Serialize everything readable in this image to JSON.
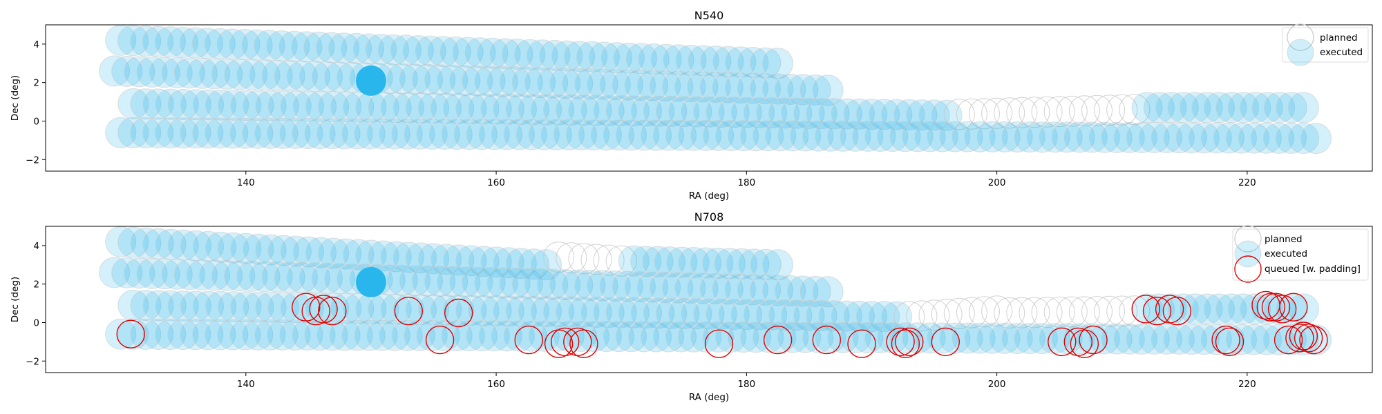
{
  "colors": {
    "planned_edge": "#c8c8c8",
    "executed_fill": "#29b6ec",
    "queued_edge": "#e00000",
    "axis": "#000000"
  },
  "legend_labels": {
    "planned": "planned",
    "executed": "executed",
    "queued": "queued [w. padding]"
  },
  "chart_data": [
    {
      "type": "scatter",
      "title": "N540",
      "xlabel": "RA (deg)",
      "ylabel": "Dec (deg)",
      "xlim": [
        124,
        230
      ],
      "ylim": [
        -2.6,
        5.0
      ],
      "xticks": [
        140,
        160,
        180,
        200,
        220
      ],
      "yticks": [
        -2,
        0,
        2,
        4
      ],
      "legend_position": "top-right",
      "legend": [
        "planned",
        "executed"
      ],
      "strips": [
        {
          "dec_start": 4.2,
          "dec_end": 3.0,
          "ra_start": 130,
          "ra_end": 182.5,
          "status": "executed"
        },
        {
          "dec_start": 2.6,
          "dec_end": 1.6,
          "ra_start": 129.5,
          "ra_end": 186.5,
          "status": "executed"
        },
        {
          "dec_start": 0.9,
          "dec_end": 0.3,
          "ra_start": 131,
          "ra_end": 196,
          "status": "executed"
        },
        {
          "dec_start": 0.35,
          "dec_end": 0.6,
          "ra_start": 197,
          "ra_end": 211,
          "status": "planned"
        },
        {
          "dec_start": 0.7,
          "dec_end": 0.7,
          "ra_start": 212,
          "ra_end": 224.5,
          "status": "executed"
        },
        {
          "dec_start": -0.6,
          "dec_end": -0.9,
          "ra_start": 130,
          "ra_end": 225.5,
          "status": "executed"
        }
      ],
      "highlight": {
        "ra": 150,
        "dec": 2.1,
        "status": "executed"
      }
    },
    {
      "type": "scatter",
      "title": "N708",
      "xlabel": "RA (deg)",
      "ylabel": "Dec (deg)",
      "xlim": [
        124,
        230
      ],
      "ylim": [
        -2.6,
        5.0
      ],
      "xticks": [
        140,
        160,
        180,
        200,
        220
      ],
      "yticks": [
        -2,
        0,
        2,
        4
      ],
      "legend_position": "top-right",
      "legend": [
        "planned",
        "executed",
        "queued [w. padding]"
      ],
      "strips": [
        {
          "dec_start": 4.2,
          "dec_end": 3.0,
          "ra_start": 130,
          "ra_end": 164,
          "status": "executed"
        },
        {
          "dec_start": 3.4,
          "dec_end": 3.2,
          "ra_start": 165,
          "ra_end": 170,
          "status": "planned"
        },
        {
          "dec_start": 3.2,
          "dec_end": 3.0,
          "ra_start": 171,
          "ra_end": 182.5,
          "status": "executed"
        },
        {
          "dec_start": 2.6,
          "dec_end": 1.6,
          "ra_start": 129.5,
          "ra_end": 186.5,
          "status": "executed"
        },
        {
          "dec_start": 0.9,
          "dec_end": 0.3,
          "ra_start": 131,
          "ra_end": 192,
          "status": "executed"
        },
        {
          "dec_start": 0.3,
          "dec_end": 0.6,
          "ra_start": 193,
          "ra_end": 200,
          "status": "planned"
        },
        {
          "dec_start": 0.5,
          "dec_end": 0.6,
          "ra_start": 201,
          "ra_end": 211,
          "status": "planned"
        },
        {
          "dec_start": 0.7,
          "dec_end": 0.7,
          "ra_start": 212,
          "ra_end": 224.5,
          "status": "executed"
        },
        {
          "dec_start": -0.6,
          "dec_end": -0.9,
          "ra_start": 130,
          "ra_end": 225.5,
          "status": "executed"
        }
      ],
      "highlight": {
        "ra": 150,
        "dec": 2.1,
        "status": "executed"
      },
      "queued": [
        {
          "ra": 130.8,
          "dec": -0.6
        },
        {
          "ra": 144.8,
          "dec": 0.8
        },
        {
          "ra": 145.6,
          "dec": 0.6
        },
        {
          "ra": 146.2,
          "dec": 0.7
        },
        {
          "ra": 146.9,
          "dec": 0.6
        },
        {
          "ra": 153.0,
          "dec": 0.6
        },
        {
          "ra": 155.5,
          "dec": -0.9
        },
        {
          "ra": 157.0,
          "dec": 0.5
        },
        {
          "ra": 162.6,
          "dec": -0.9
        },
        {
          "ra": 165.0,
          "dec": -1.1
        },
        {
          "ra": 165.5,
          "dec": -1.0
        },
        {
          "ra": 166.5,
          "dec": -1.0
        },
        {
          "ra": 167.0,
          "dec": -1.1
        },
        {
          "ra": 177.8,
          "dec": -1.1
        },
        {
          "ra": 182.5,
          "dec": -0.9
        },
        {
          "ra": 186.4,
          "dec": -0.9
        },
        {
          "ra": 189.2,
          "dec": -1.1
        },
        {
          "ra": 192.3,
          "dec": -1.0
        },
        {
          "ra": 192.7,
          "dec": -1.1
        },
        {
          "ra": 193.0,
          "dec": -1.0
        },
        {
          "ra": 195.9,
          "dec": -1.0
        },
        {
          "ra": 205.2,
          "dec": -1.0
        },
        {
          "ra": 206.5,
          "dec": -1.0
        },
        {
          "ra": 207.0,
          "dec": -1.1
        },
        {
          "ra": 207.7,
          "dec": -0.9
        },
        {
          "ra": 211.9,
          "dec": 0.7
        },
        {
          "ra": 212.8,
          "dec": 0.6
        },
        {
          "ra": 213.8,
          "dec": 0.7
        },
        {
          "ra": 214.4,
          "dec": 0.6
        },
        {
          "ra": 218.3,
          "dec": -0.9
        },
        {
          "ra": 218.6,
          "dec": -1.0
        },
        {
          "ra": 221.5,
          "dec": 0.9
        },
        {
          "ra": 221.9,
          "dec": 0.8
        },
        {
          "ra": 222.3,
          "dec": 0.8
        },
        {
          "ra": 222.8,
          "dec": 0.7
        },
        {
          "ra": 223.3,
          "dec": -0.9
        },
        {
          "ra": 223.7,
          "dec": 0.8
        },
        {
          "ra": 224.2,
          "dec": -0.8
        },
        {
          "ra": 224.5,
          "dec": -0.7
        },
        {
          "ra": 224.9,
          "dec": -0.8
        },
        {
          "ra": 225.3,
          "dec": -0.9
        }
      ]
    }
  ]
}
